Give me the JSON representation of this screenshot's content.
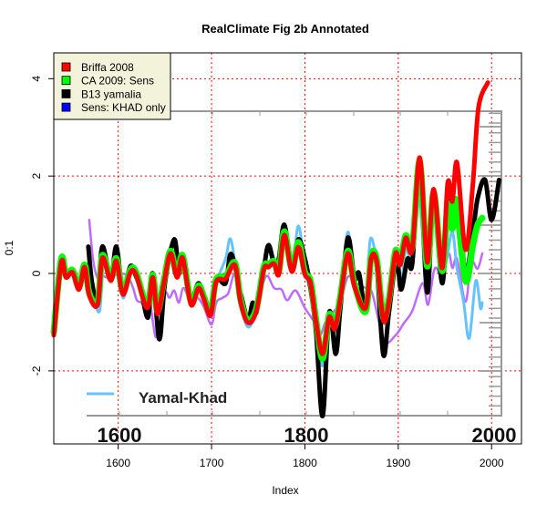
{
  "chart_data": {
    "type": "line",
    "title": "RealClimate Fig 2b Annotated",
    "xlabel": "Index",
    "ylabel": "0:1",
    "xlim": [
      1531,
      2032
    ],
    "ylim": [
      -3.5,
      4.53
    ],
    "xticks": [
      1600,
      1700,
      1800,
      1900,
      2000
    ],
    "yticks": [
      -2,
      0,
      2,
      4
    ],
    "grid": true,
    "legend_position": "top-left",
    "legend": [
      {
        "label": "Briffa 2008",
        "color": "#ff0000"
      },
      {
        "label": "CA 2009: Sens",
        "color": "#00ff00"
      },
      {
        "label": "B13 yamalia",
        "color": "#000000"
      },
      {
        "label": "Sens: KHAD only",
        "color": "#0000ff"
      }
    ],
    "annotation": {
      "label": "Yamal-Khad",
      "color": "#66c2ff",
      "year_labels": [
        "1600",
        "1800",
        "2000"
      ]
    },
    "series": [
      {
        "name": "Sens: KHAD only",
        "color": "#bf6bff",
        "x": [
          1569,
          1573,
          1578,
          1583,
          1592,
          1600,
          1610,
          1616,
          1620,
          1625,
          1630,
          1634,
          1640,
          1645,
          1650,
          1655,
          1660,
          1665,
          1670,
          1678,
          1685,
          1692,
          1700,
          1705,
          1712,
          1718,
          1725,
          1732,
          1740,
          1748,
          1755,
          1760,
          1767,
          1775,
          1781,
          1790,
          1800,
          1810,
          1816,
          1822,
          1830,
          1838,
          1846,
          1855,
          1865,
          1872,
          1885,
          1897,
          1906,
          1915,
          1926,
          1932,
          1939,
          1947,
          1954,
          1958,
          1963,
          1972,
          1978,
          1985,
          1990
        ],
        "y": [
          1.1,
          0.3,
          -0.1,
          -0.05,
          -0.1,
          0.0,
          -0.05,
          -0.3,
          -0.55,
          -0.6,
          -0.75,
          -0.6,
          -1.3,
          -1.0,
          -0.4,
          -0.5,
          -0.35,
          -0.6,
          -0.3,
          -0.6,
          -0.5,
          -0.7,
          -1.05,
          -0.6,
          -0.5,
          -0.4,
          0.0,
          -0.5,
          -1.0,
          -0.6,
          -0.2,
          -0.05,
          -0.3,
          -0.33,
          -0.55,
          -0.35,
          -0.71,
          -1.0,
          -1.27,
          -1.0,
          -0.8,
          -0.6,
          -0.07,
          -0.2,
          -0.3,
          -0.4,
          -1.37,
          -1.27,
          -1.02,
          -0.77,
          -0.2,
          -0.64,
          0.1,
          -0.05,
          0.41,
          0.11,
          0.3,
          -0.58,
          0.23,
          0.1,
          0.41
        ]
      },
      {
        "name": "Yamal-Khad",
        "color": "#66c2ff",
        "x": [
          1568,
          1572,
          1580,
          1585,
          1592,
          1598,
          1605,
          1613,
          1620,
          1632,
          1637,
          1644,
          1650,
          1660,
          1665,
          1669,
          1678,
          1686,
          1692,
          1699,
          1705,
          1715,
          1721,
          1731,
          1739,
          1748,
          1756,
          1761,
          1767,
          1772,
          1778,
          1786,
          1793,
          1800,
          1806,
          1812,
          1819,
          1826,
          1832,
          1838,
          1846,
          1853,
          1865,
          1870,
          1877,
          1884,
          1890,
          1897,
          1903,
          1908,
          1915,
          1923,
          1930,
          1938,
          1947,
          1952,
          1958,
          1963,
          1970,
          1976,
          1983,
          1988,
          1990
        ],
        "y": [
          0.5,
          -0.3,
          -0.77,
          0.4,
          -0.1,
          0.5,
          -0.5,
          0.1,
          -0.05,
          -0.85,
          0.0,
          -1.2,
          -0.2,
          0.6,
          0.05,
          0.4,
          -0.5,
          -0.3,
          -0.45,
          -0.8,
          -0.2,
          0.3,
          0.68,
          -0.6,
          -1.1,
          -0.75,
          0.2,
          0.5,
          0.3,
          0.1,
          1.0,
          0.1,
          0.98,
          0.1,
          -0.4,
          -1.1,
          -1.9,
          -0.8,
          -1.2,
          -0.5,
          0.85,
          -0.2,
          -0.6,
          0.7,
          0.2,
          -1.0,
          -0.6,
          0.4,
          -0.2,
          0.5,
          0.3,
          1.5,
          -0.3,
          1.2,
          0.0,
          0.3,
          0.86,
          0.1,
          -0.58,
          -1.33,
          -0.15,
          -0.71,
          -0.6
        ]
      },
      {
        "name": "B13 yamalia",
        "color": "#000000",
        "x": [
          1568,
          1572,
          1578,
          1583,
          1592,
          1598,
          1605,
          1613,
          1619,
          1625,
          1632,
          1637,
          1644,
          1650,
          1660,
          1665,
          1669,
          1678,
          1686,
          1692,
          1699,
          1705,
          1715,
          1721,
          1731,
          1739,
          1744,
          1748,
          1756,
          1761,
          1767,
          1772,
          1778,
          1786,
          1793,
          1800,
          1806,
          1812,
          1819,
          1826,
          1833,
          1838,
          1846,
          1853,
          1858,
          1865,
          1871,
          1877,
          1884,
          1890,
          1898,
          1903,
          1910,
          1915,
          1923,
          1931,
          1938,
          1947,
          1953,
          1960,
          1965,
          1972,
          1980,
          1985,
          1993,
          2000,
          2008
        ],
        "y": [
          0.55,
          -0.2,
          -0.55,
          0.55,
          -0.1,
          0.55,
          -0.35,
          0.15,
          -0.05,
          -0.4,
          -0.9,
          0.0,
          -1.35,
          -0.2,
          0.7,
          0.0,
          0.35,
          -0.5,
          -0.2,
          -0.5,
          -0.7,
          -0.1,
          -0.2,
          0.4,
          -0.4,
          -0.95,
          -0.6,
          -0.8,
          0.1,
          0.58,
          0.2,
          0.3,
          1.0,
          0.1,
          0.7,
          0.3,
          -0.3,
          -1.2,
          -2.93,
          -0.8,
          -1.65,
          -0.7,
          0.73,
          -0.1,
          0.0,
          -0.75,
          0.4,
          0.15,
          -1.67,
          -0.8,
          0.3,
          -0.33,
          0.3,
          0.2,
          2.2,
          -0.39,
          1.6,
          -0.2,
          1.4,
          1.3,
          1.4,
          -0.02,
          0.86,
          1.54,
          1.92,
          1.1,
          1.92
        ]
      },
      {
        "name": "CA 2009: Sens",
        "color": "#00ff00",
        "x": [
          1531,
          1539,
          1544,
          1551,
          1558,
          1564,
          1569,
          1578,
          1583,
          1592,
          1598,
          1605,
          1613,
          1619,
          1631,
          1637,
          1642,
          1649,
          1656,
          1663,
          1669,
          1678,
          1686,
          1692,
          1699,
          1705,
          1715,
          1725,
          1731,
          1739,
          1748,
          1756,
          1761,
          1767,
          1772,
          1778,
          1786,
          1793,
          1800,
          1806,
          1812,
          1819,
          1826,
          1832,
          1838,
          1846,
          1853,
          1865,
          1871,
          1877,
          1884,
          1890,
          1897,
          1902,
          1908,
          1915,
          1923,
          1931,
          1938,
          1947,
          1953,
          1958,
          1962,
          1972,
          1980,
          1985,
          1990
        ],
        "y": [
          -1.2,
          0.3,
          -0.03,
          0.07,
          -0.28,
          0.18,
          -0.4,
          -0.6,
          0.37,
          -0.1,
          0.31,
          -0.38,
          0.07,
          0.03,
          -0.66,
          -0.03,
          -0.78,
          -0.15,
          0.46,
          -0.03,
          0.37,
          -0.59,
          -0.25,
          -0.49,
          -0.81,
          -0.12,
          -0.06,
          0.22,
          -0.53,
          -0.96,
          -0.72,
          0.13,
          0.18,
          0.25,
          0.03,
          0.86,
          0.09,
          0.64,
          0.03,
          -0.15,
          -0.96,
          -1.75,
          -0.85,
          -1.09,
          -0.47,
          0.46,
          -0.21,
          -0.78,
          0.35,
          0.28,
          -0.91,
          -0.53,
          0.46,
          0.22,
          0.78,
          0.54,
          2.3,
          0.15,
          1.65,
          0.05,
          1.42,
          0.92,
          1.5,
          -0.15,
          0.6,
          1.0,
          1.14
        ]
      },
      {
        "name": "Briffa 2008",
        "color": "#ff0000",
        "x": [
          1531,
          1539,
          1544,
          1551,
          1558,
          1564,
          1569,
          1578,
          1583,
          1592,
          1598,
          1605,
          1613,
          1619,
          1631,
          1637,
          1642,
          1649,
          1656,
          1663,
          1669,
          1678,
          1686,
          1692,
          1699,
          1705,
          1715,
          1725,
          1731,
          1739,
          1748,
          1756,
          1761,
          1767,
          1772,
          1778,
          1786,
          1793,
          1800,
          1806,
          1812,
          1819,
          1826,
          1832,
          1838,
          1846,
          1853,
          1865,
          1871,
          1877,
          1884,
          1890,
          1897,
          1902,
          1908,
          1915,
          1923,
          1931,
          1938,
          1947,
          1953,
          1958,
          1963,
          1972,
          1980,
          1986,
          1996
        ],
        "y": [
          -1.27,
          0.23,
          -0.08,
          0.02,
          -0.33,
          0.13,
          -0.45,
          -0.64,
          0.32,
          -0.15,
          0.26,
          -0.43,
          0.02,
          -0.02,
          -0.71,
          -0.08,
          -0.83,
          -0.2,
          0.41,
          -0.08,
          0.32,
          -0.64,
          -0.3,
          -0.54,
          -0.86,
          -0.17,
          -0.11,
          0.17,
          -0.58,
          -1.01,
          -0.77,
          0.08,
          0.13,
          0.2,
          -0.02,
          0.79,
          0.04,
          0.54,
          -0.02,
          -0.2,
          -1.01,
          -1.65,
          -0.9,
          -1.14,
          -0.52,
          0.41,
          -0.26,
          -0.71,
          0.3,
          0.23,
          -0.96,
          -0.58,
          0.41,
          0.17,
          0.73,
          0.49,
          2.38,
          0.23,
          1.73,
          0.11,
          1.86,
          1.48,
          2.27,
          0.49,
          1.86,
          3.41,
          3.92
        ]
      }
    ]
  }
}
